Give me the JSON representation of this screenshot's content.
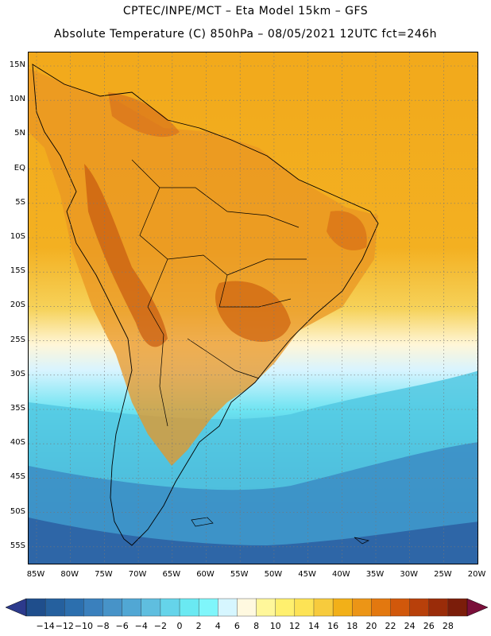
{
  "header": {
    "line1": "CPTEC/INPE/MCT  –   Eta Model 15km – GFS",
    "line2": "Absolute Temperature (C) 850hPa – 08/05/2021 12UTC fct=246h"
  },
  "map": {
    "region": "South America",
    "lat_labels": [
      "15N",
      "10N",
      "5N",
      "EQ",
      "5S",
      "10S",
      "15S",
      "20S",
      "25S",
      "30S",
      "35S",
      "40S",
      "45S",
      "50S",
      "55S"
    ],
    "lon_labels": [
      "85W",
      "80W",
      "75W",
      "70W",
      "65W",
      "60W",
      "55W",
      "50W",
      "45W",
      "40W",
      "35W",
      "30W",
      "25W",
      "20W"
    ],
    "gridlines": "dotted",
    "colors": {
      "warm_north": "#f2a91b",
      "hot_interior": "#e38a1c",
      "hottest_areas": "#c85a10",
      "cold_south": "#3b93c8",
      "coldest_south": "#2868aa"
    }
  },
  "colorbar": {
    "labels": [
      "-14",
      "-12",
      "-10",
      "-8",
      "-6",
      "-4",
      "-2",
      "0",
      "2",
      "4",
      "6",
      "8",
      "10",
      "12",
      "14",
      "16",
      "18",
      "20",
      "22",
      "24",
      "26",
      "28"
    ],
    "colors": [
      "#1f4e8c",
      "#25609e",
      "#2c6fae",
      "#3a80bd",
      "#4793c8",
      "#51a7d4",
      "#5fbedf",
      "#65d4ea",
      "#6ae9f2",
      "#7ff6fb",
      "#d6f6ff",
      "#fff9e0",
      "#fff79a",
      "#fff06e",
      "#fde355",
      "#f7cb3d",
      "#f2b018",
      "#ec9516",
      "#e3780f",
      "#d1580b",
      "#b8400a",
      "#9a2c09",
      "#7b1d0a"
    ],
    "low_arrow_color": "#2c3a8c",
    "high_arrow_color": "#7a0f3a"
  }
}
